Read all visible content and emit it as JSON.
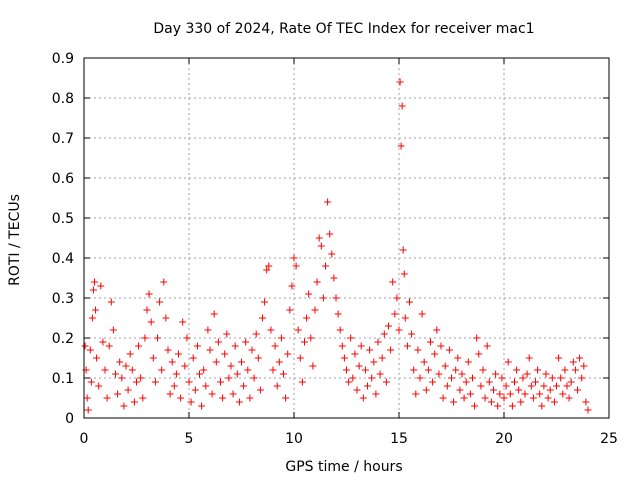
{
  "chart_data": {
    "type": "scatter",
    "title": "Day 330 of 2024, Rate Of TEC Index for receiver mac1",
    "xlabel": "GPS time / hours",
    "ylabel": "ROTI / TECUs",
    "xlim": [
      0,
      25
    ],
    "ylim": [
      0,
      0.9
    ],
    "xticks": [
      0,
      5,
      10,
      15,
      20,
      25
    ],
    "yticks": [
      0,
      0.1,
      0.2,
      0.3,
      0.4,
      0.5,
      0.6,
      0.7,
      0.8,
      0.9
    ],
    "grid": true,
    "legend": "none",
    "marker": "+",
    "color": "#ff0000",
    "series": [
      {
        "points": [
          [
            0.05,
            0.18
          ],
          [
            0.1,
            0.12
          ],
          [
            0.15,
            0.05
          ],
          [
            0.2,
            0.02
          ],
          [
            0.3,
            0.17
          ],
          [
            0.35,
            0.09
          ],
          [
            0.4,
            0.25
          ],
          [
            0.45,
            0.32
          ],
          [
            0.5,
            0.34
          ],
          [
            0.55,
            0.27
          ],
          [
            0.6,
            0.15
          ],
          [
            0.7,
            0.08
          ],
          [
            0.8,
            0.33
          ],
          [
            0.9,
            0.19
          ],
          [
            1.0,
            0.12
          ],
          [
            1.1,
            0.05
          ],
          [
            1.2,
            0.18
          ],
          [
            1.3,
            0.29
          ],
          [
            1.4,
            0.22
          ],
          [
            1.5,
            0.11
          ],
          [
            1.6,
            0.06
          ],
          [
            1.7,
            0.14
          ],
          [
            1.8,
            0.1
          ],
          [
            1.9,
            0.03
          ],
          [
            2.0,
            0.13
          ],
          [
            2.1,
            0.07
          ],
          [
            2.2,
            0.16
          ],
          [
            2.3,
            0.12
          ],
          [
            2.4,
            0.04
          ],
          [
            2.5,
            0.09
          ],
          [
            2.6,
            0.18
          ],
          [
            2.7,
            0.1
          ],
          [
            2.8,
            0.05
          ],
          [
            2.9,
            0.2
          ],
          [
            3.0,
            0.27
          ],
          [
            3.1,
            0.31
          ],
          [
            3.2,
            0.24
          ],
          [
            3.3,
            0.15
          ],
          [
            3.4,
            0.09
          ],
          [
            3.5,
            0.2
          ],
          [
            3.6,
            0.29
          ],
          [
            3.7,
            0.12
          ],
          [
            3.8,
            0.34
          ],
          [
            3.9,
            0.25
          ],
          [
            4.0,
            0.17
          ],
          [
            4.1,
            0.06
          ],
          [
            4.2,
            0.14
          ],
          [
            4.3,
            0.08
          ],
          [
            4.4,
            0.11
          ],
          [
            4.5,
            0.16
          ],
          [
            4.6,
            0.05
          ],
          [
            4.7,
            0.24
          ],
          [
            4.8,
            0.13
          ],
          [
            4.9,
            0.2
          ],
          [
            5.0,
            0.09
          ],
          [
            5.1,
            0.04
          ],
          [
            5.2,
            0.15
          ],
          [
            5.3,
            0.07
          ],
          [
            5.4,
            0.18
          ],
          [
            5.5,
            0.11
          ],
          [
            5.6,
            0.03
          ],
          [
            5.7,
            0.12
          ],
          [
            5.8,
            0.08
          ],
          [
            5.9,
            0.22
          ],
          [
            6.0,
            0.17
          ],
          [
            6.1,
            0.06
          ],
          [
            6.2,
            0.26
          ],
          [
            6.3,
            0.14
          ],
          [
            6.4,
            0.19
          ],
          [
            6.5,
            0.09
          ],
          [
            6.6,
            0.05
          ],
          [
            6.7,
            0.16
          ],
          [
            6.8,
            0.21
          ],
          [
            6.9,
            0.1
          ],
          [
            7.0,
            0.13
          ],
          [
            7.1,
            0.06
          ],
          [
            7.2,
            0.18
          ],
          [
            7.3,
            0.11
          ],
          [
            7.4,
            0.04
          ],
          [
            7.5,
            0.14
          ],
          [
            7.6,
            0.08
          ],
          [
            7.7,
            0.19
          ],
          [
            7.8,
            0.12
          ],
          [
            7.9,
            0.05
          ],
          [
            8.0,
            0.17
          ],
          [
            8.1,
            0.1
          ],
          [
            8.2,
            0.21
          ],
          [
            8.3,
            0.15
          ],
          [
            8.4,
            0.07
          ],
          [
            8.5,
            0.25
          ],
          [
            8.6,
            0.29
          ],
          [
            8.7,
            0.37
          ],
          [
            8.8,
            0.38
          ],
          [
            8.9,
            0.22
          ],
          [
            9.0,
            0.12
          ],
          [
            9.1,
            0.18
          ],
          [
            9.2,
            0.08
          ],
          [
            9.3,
            0.14
          ],
          [
            9.4,
            0.2
          ],
          [
            9.5,
            0.11
          ],
          [
            9.6,
            0.05
          ],
          [
            9.7,
            0.16
          ],
          [
            9.8,
            0.27
          ],
          [
            9.9,
            0.33
          ],
          [
            10.0,
            0.4
          ],
          [
            10.1,
            0.38
          ],
          [
            10.2,
            0.22
          ],
          [
            10.3,
            0.15
          ],
          [
            10.4,
            0.09
          ],
          [
            10.5,
            0.19
          ],
          [
            10.6,
            0.25
          ],
          [
            10.7,
            0.31
          ],
          [
            10.8,
            0.2
          ],
          [
            10.9,
            0.13
          ],
          [
            11.0,
            0.27
          ],
          [
            11.1,
            0.34
          ],
          [
            11.2,
            0.45
          ],
          [
            11.3,
            0.43
          ],
          [
            11.4,
            0.3
          ],
          [
            11.5,
            0.38
          ],
          [
            11.6,
            0.54
          ],
          [
            11.7,
            0.46
          ],
          [
            11.8,
            0.41
          ],
          [
            11.9,
            0.35
          ],
          [
            12.0,
            0.3
          ],
          [
            12.1,
            0.26
          ],
          [
            12.2,
            0.22
          ],
          [
            12.3,
            0.18
          ],
          [
            12.4,
            0.15
          ],
          [
            12.5,
            0.12
          ],
          [
            12.6,
            0.09
          ],
          [
            12.7,
            0.2
          ],
          [
            12.8,
            0.1
          ],
          [
            12.9,
            0.16
          ],
          [
            13.0,
            0.07
          ],
          [
            13.1,
            0.13
          ],
          [
            13.2,
            0.18
          ],
          [
            13.3,
            0.05
          ],
          [
            13.4,
            0.12
          ],
          [
            13.5,
            0.08
          ],
          [
            13.6,
            0.17
          ],
          [
            13.7,
            0.1
          ],
          [
            13.8,
            0.14
          ],
          [
            13.9,
            0.06
          ],
          [
            14.0,
            0.19
          ],
          [
            14.1,
            0.11
          ],
          [
            14.2,
            0.15
          ],
          [
            14.3,
            0.21
          ],
          [
            14.4,
            0.09
          ],
          [
            14.5,
            0.23
          ],
          [
            14.6,
            0.17
          ],
          [
            14.7,
            0.34
          ],
          [
            14.8,
            0.26
          ],
          [
            14.9,
            0.3
          ],
          [
            15.0,
            0.22
          ],
          [
            15.05,
            0.84
          ],
          [
            15.1,
            0.68
          ],
          [
            15.15,
            0.78
          ],
          [
            15.2,
            0.42
          ],
          [
            15.25,
            0.36
          ],
          [
            15.3,
            0.25
          ],
          [
            15.4,
            0.18
          ],
          [
            15.5,
            0.29
          ],
          [
            15.6,
            0.21
          ],
          [
            15.7,
            0.12
          ],
          [
            15.8,
            0.06
          ],
          [
            15.9,
            0.17
          ],
          [
            16.0,
            0.1
          ],
          [
            16.1,
            0.26
          ],
          [
            16.2,
            0.14
          ],
          [
            16.3,
            0.07
          ],
          [
            16.4,
            0.12
          ],
          [
            16.5,
            0.19
          ],
          [
            16.6,
            0.09
          ],
          [
            16.7,
            0.16
          ],
          [
            16.8,
            0.22
          ],
          [
            16.9,
            0.11
          ],
          [
            17.0,
            0.18
          ],
          [
            17.1,
            0.05
          ],
          [
            17.2,
            0.13
          ],
          [
            17.3,
            0.08
          ],
          [
            17.4,
            0.17
          ],
          [
            17.5,
            0.1
          ],
          [
            17.6,
            0.04
          ],
          [
            17.7,
            0.12
          ],
          [
            17.8,
            0.15
          ],
          [
            17.9,
            0.07
          ],
          [
            18.0,
            0.11
          ],
          [
            18.1,
            0.05
          ],
          [
            18.2,
            0.09
          ],
          [
            18.3,
            0.14
          ],
          [
            18.4,
            0.06
          ],
          [
            18.5,
            0.1
          ],
          [
            18.6,
            0.03
          ],
          [
            18.7,
            0.2
          ],
          [
            18.8,
            0.16
          ],
          [
            18.9,
            0.08
          ],
          [
            19.0,
            0.12
          ],
          [
            19.1,
            0.05
          ],
          [
            19.2,
            0.18
          ],
          [
            19.3,
            0.09
          ],
          [
            19.4,
            0.04
          ],
          [
            19.5,
            0.07
          ],
          [
            19.6,
            0.11
          ],
          [
            19.7,
            0.03
          ],
          [
            19.8,
            0.06
          ],
          [
            19.9,
            0.1
          ],
          [
            20.0,
            0.05
          ],
          [
            20.1,
            0.08
          ],
          [
            20.2,
            0.14
          ],
          [
            20.3,
            0.06
          ],
          [
            20.4,
            0.03
          ],
          [
            20.5,
            0.09
          ],
          [
            20.6,
            0.12
          ],
          [
            20.7,
            0.07
          ],
          [
            20.8,
            0.04
          ],
          [
            20.9,
            0.1
          ],
          [
            21.0,
            0.06
          ],
          [
            21.1,
            0.11
          ],
          [
            21.2,
            0.15
          ],
          [
            21.3,
            0.08
          ],
          [
            21.4,
            0.05
          ],
          [
            21.5,
            0.09
          ],
          [
            21.6,
            0.12
          ],
          [
            21.7,
            0.06
          ],
          [
            21.8,
            0.03
          ],
          [
            21.9,
            0.08
          ],
          [
            22.0,
            0.11
          ],
          [
            22.1,
            0.05
          ],
          [
            22.2,
            0.07
          ],
          [
            22.3,
            0.1
          ],
          [
            22.4,
            0.04
          ],
          [
            22.5,
            0.08
          ],
          [
            22.6,
            0.15
          ],
          [
            22.7,
            0.1
          ],
          [
            22.8,
            0.06
          ],
          [
            22.9,
            0.12
          ],
          [
            23.0,
            0.08
          ],
          [
            23.1,
            0.05
          ],
          [
            23.2,
            0.09
          ],
          [
            23.3,
            0.14
          ],
          [
            23.4,
            0.12
          ],
          [
            23.5,
            0.07
          ],
          [
            23.6,
            0.15
          ],
          [
            23.7,
            0.1
          ],
          [
            23.8,
            0.13
          ],
          [
            23.9,
            0.04
          ],
          [
            24.0,
            0.02
          ]
        ]
      }
    ]
  }
}
